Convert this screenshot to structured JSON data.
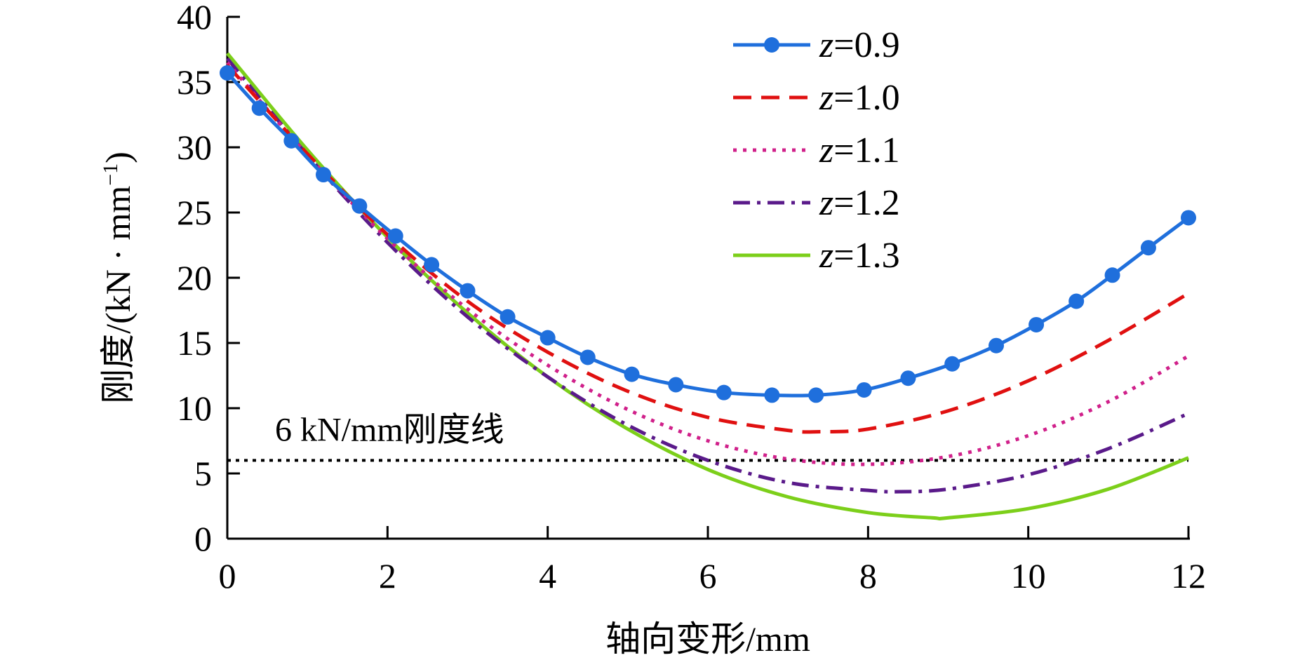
{
  "chart_data": {
    "type": "line",
    "xlabel": "轴向变形/mm",
    "ylabel": "刚度/(kN · mm⁻¹)",
    "ylabel_parts": {
      "main": "刚度/(kN · mm",
      "sup": "−1",
      "close": ")"
    },
    "xlim": [
      0,
      12
    ],
    "ylim": [
      0,
      40
    ],
    "xticks": [
      "0",
      "2",
      "4",
      "6",
      "8",
      "10",
      "12"
    ],
    "yticks": [
      "0",
      "5",
      "10",
      "15",
      "20",
      "25",
      "30",
      "35",
      "40"
    ],
    "legend_position": "top-right",
    "reference_line": {
      "y": 6,
      "label": "6 kN/mm刚度线",
      "color": "#000000"
    },
    "series": [
      {
        "name": "z=0.9",
        "var": "z",
        "eq": "=0.9",
        "color": "#1f6fdc",
        "style": "solid-marker",
        "x": [
          0,
          0.4,
          0.8,
          1.2,
          1.65,
          2.1,
          2.55,
          3.0,
          3.5,
          4.0,
          4.5,
          5.05,
          5.6,
          6.2,
          6.8,
          7.35,
          7.95,
          8.5,
          9.05,
          9.6,
          10.1,
          10.6,
          11.05,
          11.5,
          12
        ],
        "y": [
          35.7,
          33,
          30.5,
          27.9,
          25.5,
          23.2,
          21,
          19,
          17,
          15.4,
          13.9,
          12.6,
          11.8,
          11.2,
          11,
          11,
          11.4,
          12.3,
          13.4,
          14.8,
          16.4,
          18.2,
          20.2,
          22.3,
          24.6
        ]
      },
      {
        "name": "z=1.0",
        "var": "z",
        "eq": "=1.0",
        "color": "#e01010",
        "style": "dashed",
        "x": [
          0,
          1,
          2,
          3,
          4,
          5,
          6,
          7,
          7.4,
          8,
          9,
          10,
          11,
          12
        ],
        "y": [
          36.3,
          29.5,
          23.3,
          18.2,
          14.3,
          11.3,
          9.3,
          8.3,
          8.2,
          8.4,
          9.8,
          12.1,
          15.2,
          18.8
        ]
      },
      {
        "name": "z=1.1",
        "var": "z",
        "eq": "=1.1",
        "color": "#d0208a",
        "style": "dotted",
        "x": [
          0,
          1,
          2,
          3,
          4,
          5,
          6,
          7,
          8,
          9,
          10,
          11,
          12
        ],
        "y": [
          36.5,
          29.4,
          23,
          17.6,
          13.3,
          9.9,
          7.5,
          6.1,
          5.7,
          6.3,
          7.9,
          10.5,
          14
        ]
      },
      {
        "name": "z=1.2",
        "var": "z",
        "eq": "=1.2",
        "color": "#5a1a8a",
        "style": "dashdot",
        "x": [
          0,
          1,
          2,
          3,
          4,
          5,
          6,
          7,
          8,
          8.4,
          9,
          10,
          11,
          12
        ],
        "y": [
          36.8,
          29.4,
          22.7,
          17,
          12.4,
          8.7,
          6,
          4.3,
          3.7,
          3.6,
          3.8,
          4.9,
          6.9,
          9.6
        ]
      },
      {
        "name": "z=1.3",
        "var": "z",
        "eq": "=1.3",
        "color": "#7ccf1a",
        "style": "solid",
        "x": [
          0,
          1,
          2,
          3,
          4,
          5,
          6,
          7,
          8,
          8.8,
          9,
          10,
          11,
          12
        ],
        "y": [
          37.2,
          29.8,
          23.1,
          17.3,
          12.4,
          8.4,
          5.3,
          3.2,
          2,
          1.6,
          1.6,
          2.3,
          3.8,
          6.2
        ]
      }
    ]
  }
}
